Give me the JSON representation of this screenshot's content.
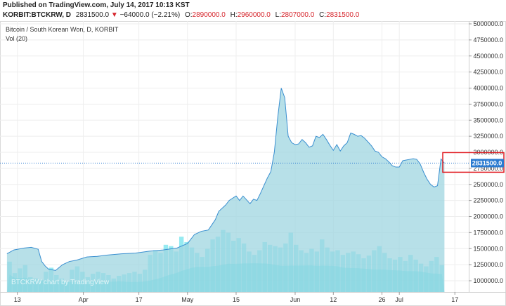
{
  "header": {
    "published": "Published on TradingView.com, July 14, 2017 10:13 KST",
    "symbol": "KORBIT:BTCKRW, D",
    "last": "2831500.0",
    "down_arrow": "▼",
    "change": "−64000.0 (−2.21%)",
    "o_label": "O:",
    "o_value": "2890000.0",
    "h_label": "H:",
    "h_value": "2960000.0",
    "l_label": "L:",
    "l_value": "2807000.0",
    "c_label": "C:",
    "c_value": "2831500.0"
  },
  "legend": {
    "title": "Bitcoin / South Korean Won, D, KORBIT",
    "volume": "Vol (20)"
  },
  "watermark": "BTCKRW chart by TradingView",
  "price_tag": "2831500.0",
  "colors": {
    "area_fill": "#9fd6e0",
    "area_line": "#3a8fd0",
    "volume": "#3fd9e6",
    "last_line": "#2a7ad0",
    "highlight": "#e11b22"
  },
  "chart_data": {
    "type": "area",
    "title": "Bitcoin / South Korean Won, D, KORBIT",
    "xlabel": "",
    "ylabel": "",
    "ylim": [
      750000,
      5000000
    ],
    "y_ticks": [
      "5000000.0",
      "4750000.0",
      "4500000.0",
      "4250000.0",
      "4000000.0",
      "3750000.0",
      "3500000.0",
      "3250000.0",
      "3000000.0",
      "2750000.0",
      "2500000.0",
      "2250000.0",
      "2000000.0",
      "1750000.0",
      "1500000.0",
      "1250000.0",
      "1000000.0"
    ],
    "x_ticks": [
      {
        "label": "13",
        "date": "2017-03-13"
      },
      {
        "label": "Apr",
        "date": "2017-04-01"
      },
      {
        "label": "17",
        "date": "2017-04-17"
      },
      {
        "label": "May",
        "date": "2017-05-01"
      },
      {
        "label": "15",
        "date": "2017-05-15"
      },
      {
        "label": "Jun",
        "date": "2017-06-01"
      },
      {
        "label": "12",
        "date": "2017-06-12"
      },
      {
        "label": "26",
        "date": "2017-06-26"
      },
      {
        "label": "Jul",
        "date": "2017-07-01"
      },
      {
        "label": "17",
        "date": "2017-07-17"
      }
    ],
    "series": [
      {
        "kind": "price",
        "points": [
          [
            "2017-03-10",
            1420000
          ],
          [
            "2017-03-12",
            1480000
          ],
          [
            "2017-03-15",
            1510000
          ],
          [
            "2017-03-17",
            1520000
          ],
          [
            "2017-03-19",
            1490000
          ],
          [
            "2017-03-20",
            1300000
          ],
          [
            "2017-03-21",
            1230000
          ],
          [
            "2017-03-22",
            1180000
          ],
          [
            "2017-03-24",
            1160000
          ],
          [
            "2017-03-26",
            1250000
          ],
          [
            "2017-03-28",
            1300000
          ],
          [
            "2017-03-30",
            1320000
          ],
          [
            "2017-04-02",
            1370000
          ],
          [
            "2017-04-05",
            1380000
          ],
          [
            "2017-04-08",
            1400000
          ],
          [
            "2017-04-12",
            1420000
          ],
          [
            "2017-04-16",
            1430000
          ],
          [
            "2017-04-20",
            1460000
          ],
          [
            "2017-04-24",
            1480000
          ],
          [
            "2017-04-28",
            1510000
          ],
          [
            "2017-05-01",
            1580000
          ],
          [
            "2017-05-03",
            1720000
          ],
          [
            "2017-05-05",
            1770000
          ],
          [
            "2017-05-07",
            1790000
          ],
          [
            "2017-05-09",
            1950000
          ],
          [
            "2017-05-10",
            2080000
          ],
          [
            "2017-05-12",
            2180000
          ],
          [
            "2017-05-13",
            2250000
          ],
          [
            "2017-05-15",
            2320000
          ],
          [
            "2017-05-16",
            2250000
          ],
          [
            "2017-05-17",
            2320000
          ],
          [
            "2017-05-18",
            2260000
          ],
          [
            "2017-05-19",
            2200000
          ],
          [
            "2017-05-20",
            2270000
          ],
          [
            "2017-05-21",
            2250000
          ],
          [
            "2017-05-22",
            2360000
          ],
          [
            "2017-05-23",
            2480000
          ],
          [
            "2017-05-24",
            2600000
          ],
          [
            "2017-05-25",
            2700000
          ],
          [
            "2017-05-26",
            3000000
          ],
          [
            "2017-05-27",
            3550000
          ],
          [
            "2017-05-28",
            4000000
          ],
          [
            "2017-05-29",
            3850000
          ],
          [
            "2017-05-30",
            3250000
          ],
          [
            "2017-05-31",
            3150000
          ],
          [
            "2017-06-01",
            3120000
          ],
          [
            "2017-06-02",
            3130000
          ],
          [
            "2017-06-03",
            3200000
          ],
          [
            "2017-06-04",
            3150000
          ],
          [
            "2017-06-05",
            3080000
          ],
          [
            "2017-06-06",
            3100000
          ],
          [
            "2017-06-07",
            3250000
          ],
          [
            "2017-06-08",
            3230000
          ],
          [
            "2017-06-09",
            3280000
          ],
          [
            "2017-06-10",
            3200000
          ],
          [
            "2017-06-11",
            3110000
          ],
          [
            "2017-06-12",
            3030000
          ],
          [
            "2017-06-13",
            3120000
          ],
          [
            "2017-06-14",
            3020000
          ],
          [
            "2017-06-15",
            3100000
          ],
          [
            "2017-06-16",
            3150000
          ],
          [
            "2017-06-17",
            3300000
          ],
          [
            "2017-06-18",
            3280000
          ],
          [
            "2017-06-19",
            3250000
          ],
          [
            "2017-06-20",
            3260000
          ],
          [
            "2017-06-21",
            3220000
          ],
          [
            "2017-06-22",
            3160000
          ],
          [
            "2017-06-23",
            3100000
          ],
          [
            "2017-06-24",
            3020000
          ],
          [
            "2017-06-25",
            3000000
          ],
          [
            "2017-06-26",
            2930000
          ],
          [
            "2017-06-27",
            2900000
          ],
          [
            "2017-06-28",
            2850000
          ],
          [
            "2017-06-29",
            2790000
          ],
          [
            "2017-06-30",
            2770000
          ],
          [
            "2017-07-01",
            2770000
          ],
          [
            "2017-07-02",
            2870000
          ],
          [
            "2017-07-03",
            2880000
          ],
          [
            "2017-07-04",
            2890000
          ],
          [
            "2017-07-05",
            2900000
          ],
          [
            "2017-07-06",
            2890000
          ],
          [
            "2017-07-07",
            2820000
          ],
          [
            "2017-07-08",
            2690000
          ],
          [
            "2017-07-09",
            2580000
          ],
          [
            "2017-07-10",
            2500000
          ],
          [
            "2017-07-11",
            2460000
          ],
          [
            "2017-07-12",
            2480000
          ],
          [
            "2017-07-13",
            2895500
          ],
          [
            "2017-07-14",
            2831500
          ]
        ]
      },
      {
        "kind": "volume",
        "note": "relative bar heights in chart units of 0-1 of volume band",
        "values": [
          0.45,
          0.28,
          0.35,
          0.4,
          0.22,
          0.2,
          0.18,
          0.3,
          0.36,
          0.25,
          0.2,
          0.15,
          0.33,
          0.38,
          0.3,
          0.22,
          0.27,
          0.3,
          0.28,
          0.25,
          0.2,
          0.24,
          0.26,
          0.28,
          0.3,
          0.27,
          0.33,
          0.55,
          0.62,
          0.58,
          0.7,
          0.68,
          0.6,
          0.82,
          0.74,
          0.66,
          0.58,
          0.52,
          0.64,
          0.78,
          0.82,
          0.92,
          0.88,
          0.76,
          0.8,
          0.72,
          0.6,
          0.55,
          0.62,
          0.74,
          0.7,
          0.68,
          0.66,
          0.72,
          0.88,
          0.7,
          0.62,
          0.58,
          0.64,
          0.6,
          0.78,
          0.66,
          0.6,
          0.62,
          0.55,
          0.58,
          0.6,
          0.56,
          0.5,
          0.54,
          0.62,
          0.68,
          0.58,
          0.5,
          0.48,
          0.52,
          0.46,
          0.55,
          0.48,
          0.42,
          0.38,
          0.46,
          0.52,
          0.4
        ]
      }
    ],
    "last_price": 2831500
  }
}
